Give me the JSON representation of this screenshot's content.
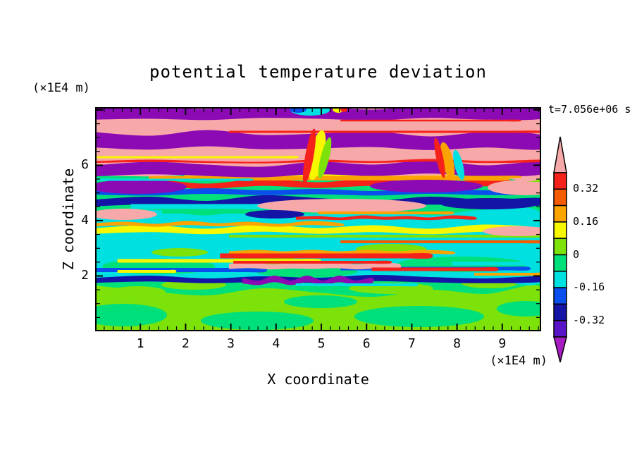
{
  "palette": {
    "pink": "#F7A8A8",
    "red": "#F5221C",
    "orange_red": "#F55C00",
    "orange": "#FBA400",
    "yellow": "#F7F700",
    "chartreuse": "#7CE20A",
    "spring": "#00E07A",
    "cyan": "#00E0E0",
    "blue": "#0A4EEE",
    "navy": "#1414A6",
    "indigo": "#5A14C8",
    "purple": "#8C0AB4",
    "magenta": "#A51CC0"
  },
  "chart_data": {
    "type": "heatmap",
    "subtype": "filled-contour",
    "title": "potential temperature deviation",
    "time_label": "t=7.056e+06 s",
    "xlabel": "X coordinate",
    "ylabel": "Z coordinate",
    "x_unit": "(×1E4 m)",
    "z_unit": "(×1E4 m)",
    "x_range": [
      0,
      9.86
    ],
    "z_range": [
      0,
      8.1
    ],
    "x_major_ticks": [
      1,
      2,
      3,
      4,
      5,
      6,
      7,
      8,
      9
    ],
    "x_minor_step": 0.2,
    "z_major_ticks": [
      2,
      4,
      6,
      8
    ],
    "z_labeled_ticks": [
      2,
      4,
      6
    ],
    "z_minor_step": 0.5,
    "contour_levels": [
      -0.4,
      -0.32,
      -0.24,
      -0.16,
      -0.08,
      0,
      0.08,
      0.16,
      0.24,
      0.32,
      0.4
    ],
    "colorbar": {
      "labels": [
        "0.32",
        "0.16",
        "0",
        "-0.16",
        "-0.32"
      ],
      "box_colors": [
        "red",
        "orange_red",
        "orange",
        "yellow",
        "chartreuse",
        "spring",
        "cyan",
        "blue",
        "navy",
        "indigo"
      ],
      "over_color": "pink",
      "under_color": "magenta"
    },
    "texture": {
      "base": "spring",
      "layers": [
        {
          "k": "s",
          "y": 292,
          "t": 62,
          "c": "chartreuse",
          "o": [
            -8,
            0,
            6,
            -4,
            2,
            8,
            -2,
            4,
            -6
          ]
        },
        {
          "k": "b",
          "x": 40,
          "y": 295,
          "rx": 62,
          "ry": 16,
          "c": "spring"
        },
        {
          "k": "b",
          "x": 230,
          "y": 303,
          "rx": 80,
          "ry": 13,
          "c": "spring"
        },
        {
          "k": "b",
          "x": 460,
          "y": 297,
          "rx": 92,
          "ry": 15,
          "c": "spring"
        },
        {
          "k": "b",
          "x": 612,
          "y": 286,
          "rx": 42,
          "ry": 11,
          "c": "spring"
        },
        {
          "k": "b",
          "x": 320,
          "y": 276,
          "rx": 52,
          "ry": 9,
          "c": "spring"
        },
        {
          "k": "b",
          "x": 140,
          "y": 252,
          "rx": 46,
          "ry": 7,
          "c": "chartreuse"
        },
        {
          "k": "b",
          "x": 420,
          "y": 257,
          "rx": 60,
          "ry": 8,
          "c": "chartreuse"
        },
        {
          "k": "b",
          "x": 560,
          "y": 250,
          "rx": 40,
          "ry": 7,
          "c": "chartreuse"
        },
        {
          "k": "b",
          "x": 60,
          "y": 262,
          "rx": 40,
          "ry": 8,
          "c": "chartreuse"
        },
        {
          "k": "s",
          "y": 196,
          "t": 97,
          "c": "cyan",
          "o": [
            4,
            -2,
            6,
            -6,
            2,
            -4,
            6,
            -2,
            4
          ]
        },
        {
          "k": "b",
          "x": 90,
          "y": 226,
          "rx": 80,
          "ry": 11,
          "c": "spring"
        },
        {
          "k": "b",
          "x": 300,
          "y": 233,
          "rx": 72,
          "ry": 9,
          "c": "spring"
        },
        {
          "k": "b",
          "x": 520,
          "y": 223,
          "rx": 92,
          "ry": 11,
          "c": "spring"
        },
        {
          "k": "b",
          "x": 420,
          "y": 201,
          "rx": 50,
          "ry": 7,
          "c": "chartreuse"
        },
        {
          "k": "b",
          "x": 120,
          "y": 206,
          "rx": 40,
          "ry": 6,
          "c": "chartreuse"
        },
        {
          "k": "b",
          "x": 240,
          "y": 218,
          "rx": 50,
          "ry": 6,
          "c": "chartreuse"
        },
        {
          "k": "s",
          "y": 174,
          "t": 9,
          "c": "yellow",
          "o": [
            2,
            -2,
            3,
            -3,
            2,
            -2,
            3,
            -3,
            2
          ]
        },
        {
          "k": "s",
          "y": 166,
          "t": 5,
          "c": "orange",
          "a": 0,
          "b": 0.55,
          "o": [
            1,
            -1,
            2,
            -2,
            1,
            -1,
            2,
            -2,
            1
          ]
        },
        {
          "k": "s",
          "y": 183,
          "t": 4,
          "c": "chartreuse",
          "a": 0.3,
          "b": 1
        },
        {
          "k": "s",
          "y": 205,
          "t": 5,
          "c": "orange",
          "a": 0.3,
          "b": 0.8,
          "o": [
            2,
            0,
            2,
            0,
            2,
            0,
            2,
            0,
            2
          ]
        },
        {
          "k": "s",
          "y": 211,
          "t": 7,
          "c": "red",
          "a": 0.28,
          "b": 0.75
        },
        {
          "k": "s",
          "y": 218,
          "t": 5,
          "c": "yellow",
          "a": 0.05,
          "b": 0.5
        },
        {
          "k": "s",
          "y": 191,
          "t": 4,
          "c": "orange_red",
          "a": 0.55,
          "b": 1
        },
        {
          "k": "s",
          "y": 222,
          "t": 5,
          "c": "cyan",
          "a": 0.8,
          "b": 1
        },
        {
          "k": "s",
          "y": 109,
          "t": 9,
          "c": "red",
          "o": [
            3,
            -2,
            4,
            -3,
            2,
            -3,
            4,
            -2,
            3
          ]
        },
        {
          "k": "s",
          "y": 101,
          "t": 6,
          "c": "orange",
          "a": 0.12,
          "b": 0.92
        },
        {
          "k": "s",
          "y": 96,
          "t": 4,
          "c": "yellow",
          "a": 0.2,
          "b": 0.8
        },
        {
          "k": "s",
          "y": 119,
          "t": 8,
          "c": "blue",
          "o": [
            2,
            4,
            0,
            3,
            1,
            4,
            0,
            3,
            1
          ]
        },
        {
          "k": "s",
          "y": 131,
          "t": 12,
          "c": "navy",
          "o": [
            6,
            2,
            8,
            0,
            4,
            8,
            2,
            6,
            4
          ]
        },
        {
          "k": "s",
          "y": 141,
          "t": 7,
          "c": "cyan",
          "a": 0.08,
          "b": 0.6
        },
        {
          "k": "s",
          "y": 148,
          "t": 6,
          "c": "spring",
          "a": 0.15,
          "b": 0.5
        },
        {
          "k": "b",
          "x": 60,
          "y": 113,
          "rx": 70,
          "ry": 10,
          "c": "purple"
        },
        {
          "k": "b",
          "x": 470,
          "y": 112,
          "rx": 80,
          "ry": 9,
          "c": "purple"
        },
        {
          "k": "b",
          "x": 350,
          "y": 140,
          "rx": 120,
          "ry": 10,
          "c": "pink"
        },
        {
          "k": "b",
          "x": 612,
          "y": 114,
          "rx": 55,
          "ry": 11,
          "c": "pink"
        },
        {
          "k": "b",
          "x": 40,
          "y": 152,
          "rx": 48,
          "ry": 8,
          "c": "pink"
        },
        {
          "k": "b",
          "x": 600,
          "y": 176,
          "rx": 50,
          "ry": 7,
          "c": "pink"
        },
        {
          "k": "b",
          "x": 255,
          "y": 152,
          "rx": 42,
          "ry": 6,
          "c": "navy"
        },
        {
          "k": "b",
          "x": 560,
          "y": 137,
          "rx": 70,
          "ry": 8,
          "c": "navy"
        },
        {
          "k": "b",
          "x": 625,
          "y": 98,
          "rx": 30,
          "ry": 8,
          "c": "chartreuse"
        },
        {
          "k": "s",
          "y": 156,
          "t": 5,
          "c": "red",
          "a": 0.45,
          "b": 0.85,
          "o": [
            2,
            1,
            3,
            0,
            2,
            1,
            3,
            0,
            2
          ]
        },
        {
          "k": "s",
          "y": 150,
          "t": 4,
          "c": "orange",
          "a": 0.5,
          "b": 0.8
        },
        {
          "k": "s",
          "y": 231,
          "t": 6,
          "c": "blue",
          "a": 0,
          "b": 0.38
        },
        {
          "k": "s",
          "y": 229,
          "t": 5,
          "c": "blue",
          "a": 0.55,
          "b": 0.97
        },
        {
          "k": "s",
          "y": 225,
          "t": 8,
          "c": "pink",
          "a": 0.3,
          "b": 0.68,
          "o": [
            1,
            -1,
            2,
            0,
            1,
            -1,
            2,
            0,
            1
          ]
        },
        {
          "k": "s",
          "y": 220,
          "t": 4,
          "c": "red",
          "a": 0.31,
          "b": 0.66
        },
        {
          "k": "s",
          "y": 230,
          "t": 5,
          "c": "red",
          "a": 0.62,
          "b": 0.9
        },
        {
          "k": "s",
          "y": 244,
          "t": 8,
          "c": "navy",
          "o": [
            2,
            -1,
            3,
            0,
            2,
            -2,
            1,
            3,
            0
          ]
        },
        {
          "k": "s",
          "y": 246,
          "t": 8,
          "c": "purple",
          "a": 0.33,
          "b": 0.62,
          "o": [
            0,
            4,
            -3,
            4,
            -3,
            4,
            -3,
            4,
            0
          ]
        },
        {
          "k": "s",
          "y": 252,
          "t": 4,
          "c": "cyan",
          "a": 0.45,
          "b": 0.72
        },
        {
          "k": "s",
          "y": 237,
          "t": 4,
          "c": "orange",
          "a": 0.85,
          "b": 1
        },
        {
          "k": "s",
          "y": 233,
          "t": 4,
          "c": "yellow",
          "a": 0.05,
          "b": 0.18
        },
        {
          "k": "s",
          "y": 47,
          "t": 100,
          "c": "pink",
          "o": [
            0,
            2,
            -2,
            3,
            -4,
            2,
            0,
            -2,
            3
          ]
        },
        {
          "k": "s",
          "y": 8,
          "t": 17,
          "c": "purple",
          "o": [
            2,
            0,
            3,
            -2,
            0,
            4,
            -2,
            2,
            0
          ]
        },
        {
          "k": "s",
          "y": 48,
          "t": 21,
          "c": "purple",
          "o": [
            -2,
            3,
            -5,
            2,
            0,
            -3,
            4,
            -2,
            2
          ]
        },
        {
          "k": "s",
          "y": 88,
          "t": 17,
          "c": "purple",
          "o": [
            3,
            -2,
            2,
            5,
            -2,
            2,
            -4,
            3,
            -2
          ]
        },
        {
          "k": "s",
          "y": 77,
          "t": 3,
          "c": "red",
          "o": [
            1,
            -1,
            1,
            2,
            -1,
            1,
            -2,
            1,
            -1
          ]
        },
        {
          "k": "s",
          "y": 71,
          "t": 3,
          "c": "yellow",
          "a": 0,
          "b": 0.45
        },
        {
          "k": "s",
          "y": 35,
          "t": 3,
          "c": "red",
          "a": 0.3,
          "b": 1
        },
        {
          "k": "s",
          "y": 19,
          "t": 2.5,
          "c": "red",
          "a": 0.55,
          "b": 0.95
        },
        {
          "k": "s",
          "y": 99,
          "t": 3,
          "c": "orange",
          "a": 0.5,
          "b": 0.95
        },
        {
          "k": "s",
          "y": 103,
          "t": 3,
          "c": "cyan",
          "a": 0,
          "b": 0.35
        },
        {
          "k": "b",
          "x": 305,
          "y": 4,
          "rx": 28,
          "ry": 8,
          "c": "cyan"
        },
        {
          "k": "b",
          "x": 288,
          "y": 3,
          "rx": 12,
          "ry": 5,
          "c": "blue"
        },
        {
          "k": "b",
          "x": 345,
          "y": 3,
          "rx": 8,
          "ry": 5,
          "c": "yellow"
        },
        {
          "k": "b",
          "x": 353,
          "y": 3,
          "rx": 5,
          "ry": 4,
          "c": "red"
        },
        {
          "k": "b",
          "x": 315,
          "y": 68,
          "rx": 10,
          "ry": 36,
          "c": "yellow",
          "r": 12
        },
        {
          "k": "b",
          "x": 304,
          "y": 70,
          "rx": 6,
          "ry": 40,
          "c": "red",
          "r": 10
        },
        {
          "k": "b",
          "x": 326,
          "y": 72,
          "rx": 6,
          "ry": 30,
          "c": "chartreuse",
          "r": 14
        },
        {
          "k": "b",
          "x": 500,
          "y": 76,
          "rx": 8,
          "ry": 27,
          "c": "orange",
          "r": -14
        },
        {
          "k": "b",
          "x": 516,
          "y": 82,
          "rx": 6,
          "ry": 22,
          "c": "cyan",
          "r": -14
        },
        {
          "k": "b",
          "x": 489,
          "y": 72,
          "rx": 5,
          "ry": 29,
          "c": "red",
          "r": -12
        }
      ]
    }
  }
}
